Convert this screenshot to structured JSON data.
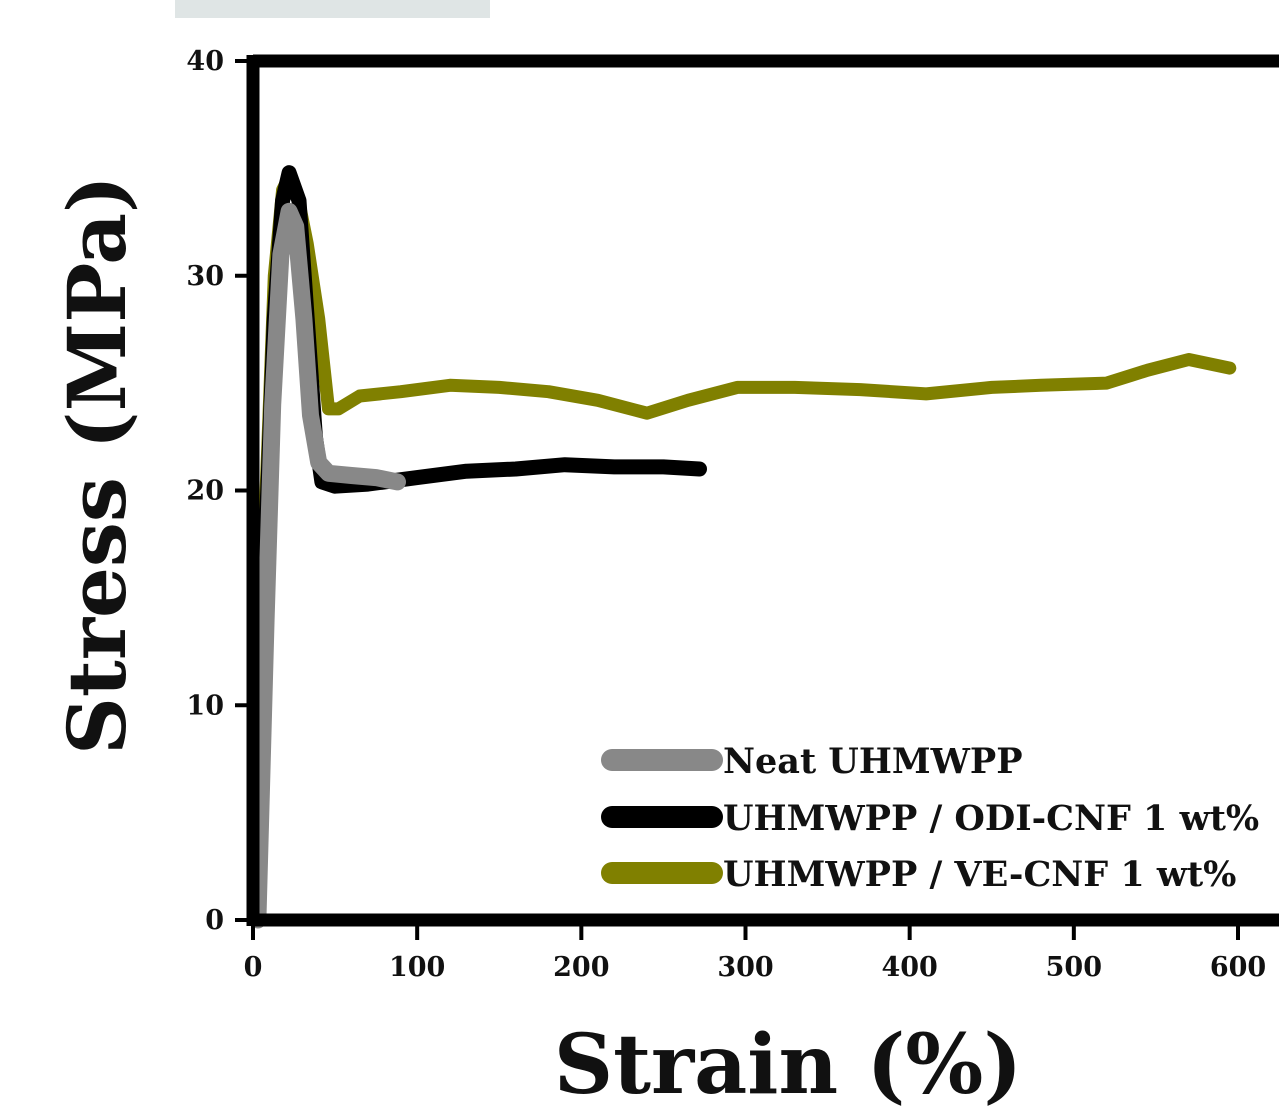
{
  "chart_data": {
    "type": "line",
    "xlabel": "Strain (%)",
    "ylabel": "Stress (MPa)",
    "xlim": [
      0,
      620
    ],
    "ylim": [
      0,
      40
    ],
    "x_ticks": [
      0,
      100,
      200,
      300,
      400,
      500,
      600
    ],
    "y_ticks": [
      0,
      10,
      20,
      30,
      40
    ],
    "grid": false,
    "legend_position": "bottom-right",
    "series": [
      {
        "name": "Neat UHMWPP",
        "color": "#888888",
        "points": [
          [
            3,
            0
          ],
          [
            8,
            14
          ],
          [
            12,
            24
          ],
          [
            17,
            31
          ],
          [
            22,
            33
          ],
          [
            26,
            32.3
          ],
          [
            31,
            28
          ],
          [
            35,
            23.5
          ],
          [
            40,
            21.3
          ],
          [
            46,
            20.8
          ],
          [
            60,
            20.7
          ],
          [
            75,
            20.6
          ],
          [
            88,
            20.4
          ]
        ]
      },
      {
        "name": "UHMWPP / ODI-CNF 1 wt%",
        "color": "#000000",
        "points": [
          [
            3,
            0
          ],
          [
            8,
            18
          ],
          [
            13,
            28
          ],
          [
            18,
            33.5
          ],
          [
            22,
            34.8
          ],
          [
            28,
            33.5
          ],
          [
            33,
            28
          ],
          [
            38,
            22.5
          ],
          [
            42,
            20.4
          ],
          [
            50,
            20.2
          ],
          [
            70,
            20.3
          ],
          [
            100,
            20.6
          ],
          [
            130,
            20.9
          ],
          [
            160,
            21.0
          ],
          [
            190,
            21.2
          ],
          [
            220,
            21.1
          ],
          [
            250,
            21.1
          ],
          [
            272,
            21.0
          ]
        ]
      },
      {
        "name": "UHMWPP / VE-CNF 1 wt%",
        "color": "#808000",
        "points": [
          [
            3,
            0
          ],
          [
            8,
            20
          ],
          [
            13,
            30
          ],
          [
            18,
            34
          ],
          [
            22,
            34.6
          ],
          [
            27,
            33.8
          ],
          [
            33,
            31.5
          ],
          [
            40,
            28
          ],
          [
            46,
            23.8
          ],
          [
            52,
            23.8
          ],
          [
            65,
            24.4
          ],
          [
            90,
            24.6
          ],
          [
            120,
            24.9
          ],
          [
            150,
            24.8
          ],
          [
            180,
            24.6
          ],
          [
            210,
            24.2
          ],
          [
            240,
            23.6
          ],
          [
            265,
            24.2
          ],
          [
            295,
            24.8
          ],
          [
            330,
            24.8
          ],
          [
            370,
            24.7
          ],
          [
            410,
            24.5
          ],
          [
            450,
            24.8
          ],
          [
            480,
            24.9
          ],
          [
            520,
            25.0
          ],
          [
            545,
            25.6
          ],
          [
            570,
            26.1
          ],
          [
            595,
            25.7
          ]
        ]
      }
    ]
  }
}
